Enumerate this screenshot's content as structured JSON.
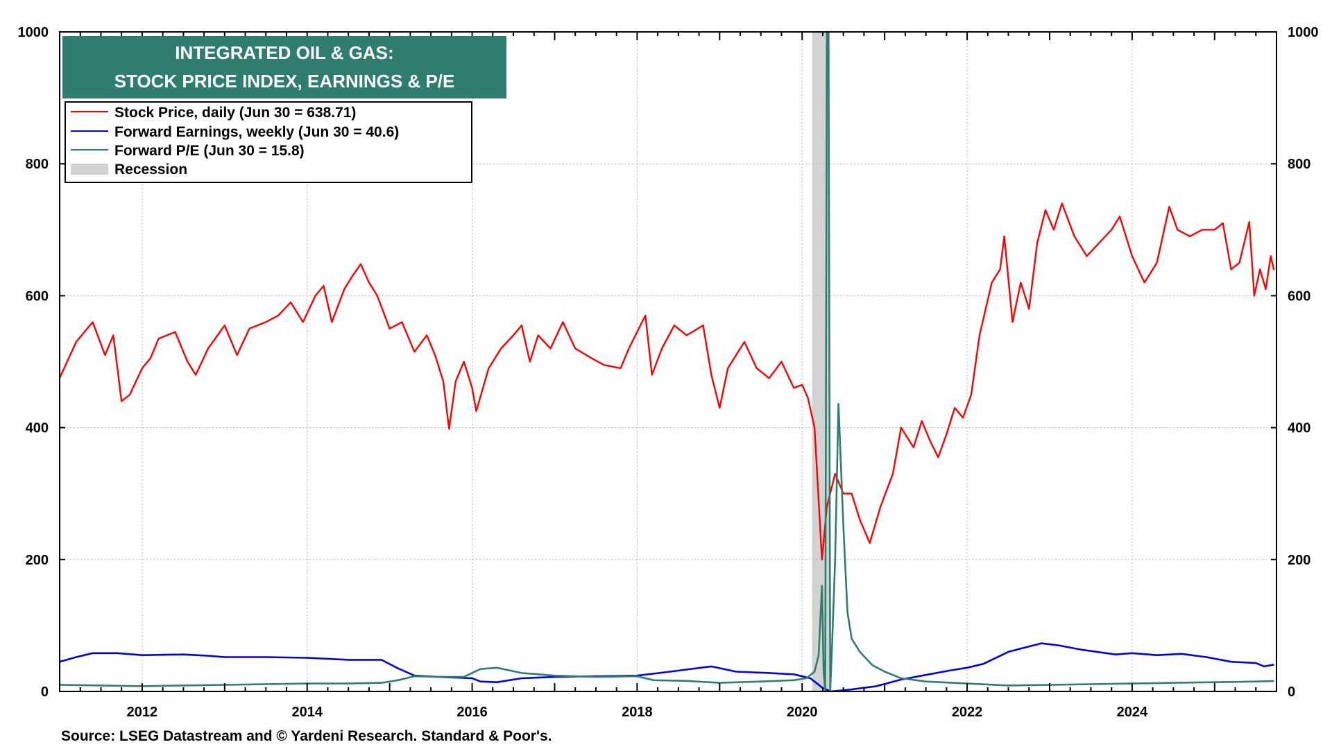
{
  "chart_data": {
    "type": "line",
    "title_lines": [
      "INTEGRATED OIL & GAS:",
      "STOCK PRICE INDEX, EARNINGS & P/E"
    ],
    "source": "Source: LSEG Datastream and © Yardeni Research. Standard & Poor's.",
    "x_range": [
      2011.0,
      2025.75
    ],
    "y_left_range": [
      0,
      1000
    ],
    "y_right_range": [
      0,
      1000
    ],
    "y_ticks": [
      "0",
      "200",
      "400",
      "600",
      "800",
      "1000"
    ],
    "x_ticks": [
      "2012",
      "2014",
      "2016",
      "2018",
      "2020",
      "2022",
      "2024"
    ],
    "grid": true,
    "legend_position": "top-left",
    "colors": {
      "price": "#ff0000",
      "earnings": "#0000ee",
      "pe": "#2e7d6e",
      "recession": "#d3d3d3",
      "title_bg": "#2e7d6e"
    },
    "recession": [
      2020.12,
      2020.33
    ],
    "series": [
      {
        "key": "price",
        "name": "Stock Price, daily (Jun 30 = 638.71)",
        "points": [
          [
            2011.0,
            475
          ],
          [
            2011.2,
            530
          ],
          [
            2011.4,
            560
          ],
          [
            2011.55,
            510
          ],
          [
            2011.65,
            540
          ],
          [
            2011.75,
            440
          ],
          [
            2011.85,
            450
          ],
          [
            2012.0,
            490
          ],
          [
            2012.1,
            505
          ],
          [
            2012.2,
            535
          ],
          [
            2012.4,
            545
          ],
          [
            2012.55,
            500
          ],
          [
            2012.65,
            480
          ],
          [
            2012.8,
            520
          ],
          [
            2013.0,
            555
          ],
          [
            2013.15,
            510
          ],
          [
            2013.3,
            550
          ],
          [
            2013.5,
            560
          ],
          [
            2013.65,
            570
          ],
          [
            2013.8,
            590
          ],
          [
            2013.95,
            560
          ],
          [
            2014.1,
            600
          ],
          [
            2014.2,
            615
          ],
          [
            2014.3,
            560
          ],
          [
            2014.45,
            610
          ],
          [
            2014.55,
            630
          ],
          [
            2014.65,
            648
          ],
          [
            2014.75,
            620
          ],
          [
            2014.85,
            600
          ],
          [
            2015.0,
            550
          ],
          [
            2015.15,
            560
          ],
          [
            2015.3,
            515
          ],
          [
            2015.45,
            540
          ],
          [
            2015.55,
            510
          ],
          [
            2015.65,
            470
          ],
          [
            2015.72,
            398
          ],
          [
            2015.8,
            470
          ],
          [
            2015.9,
            500
          ],
          [
            2016.0,
            460
          ],
          [
            2016.05,
            425
          ],
          [
            2016.2,
            490
          ],
          [
            2016.35,
            520
          ],
          [
            2016.5,
            540
          ],
          [
            2016.6,
            555
          ],
          [
            2016.7,
            500
          ],
          [
            2016.8,
            540
          ],
          [
            2016.95,
            520
          ],
          [
            2017.1,
            560
          ],
          [
            2017.25,
            520
          ],
          [
            2017.45,
            505
          ],
          [
            2017.6,
            495
          ],
          [
            2017.8,
            490
          ],
          [
            2017.9,
            520
          ],
          [
            2018.0,
            545
          ],
          [
            2018.1,
            570
          ],
          [
            2018.18,
            480
          ],
          [
            2018.3,
            520
          ],
          [
            2018.45,
            555
          ],
          [
            2018.6,
            540
          ],
          [
            2018.8,
            555
          ],
          [
            2018.9,
            480
          ],
          [
            2019.0,
            430
          ],
          [
            2019.1,
            490
          ],
          [
            2019.3,
            530
          ],
          [
            2019.45,
            490
          ],
          [
            2019.6,
            475
          ],
          [
            2019.75,
            500
          ],
          [
            2019.9,
            460
          ],
          [
            2020.0,
            465
          ],
          [
            2020.07,
            445
          ],
          [
            2020.15,
            400
          ],
          [
            2020.2,
            290
          ],
          [
            2020.24,
            200
          ],
          [
            2020.3,
            280
          ],
          [
            2020.4,
            330
          ],
          [
            2020.5,
            300
          ],
          [
            2020.6,
            300
          ],
          [
            2020.7,
            260
          ],
          [
            2020.82,
            225
          ],
          [
            2020.95,
            280
          ],
          [
            2021.1,
            330
          ],
          [
            2021.2,
            400
          ],
          [
            2021.35,
            370
          ],
          [
            2021.45,
            410
          ],
          [
            2021.55,
            380
          ],
          [
            2021.65,
            355
          ],
          [
            2021.75,
            390
          ],
          [
            2021.85,
            430
          ],
          [
            2021.95,
            415
          ],
          [
            2022.05,
            450
          ],
          [
            2022.15,
            540
          ],
          [
            2022.3,
            620
          ],
          [
            2022.4,
            640
          ],
          [
            2022.45,
            690
          ],
          [
            2022.55,
            560
          ],
          [
            2022.65,
            620
          ],
          [
            2022.75,
            580
          ],
          [
            2022.85,
            680
          ],
          [
            2022.95,
            730
          ],
          [
            2023.05,
            700
          ],
          [
            2023.15,
            740
          ],
          [
            2023.3,
            690
          ],
          [
            2023.45,
            660
          ],
          [
            2023.6,
            680
          ],
          [
            2023.75,
            700
          ],
          [
            2023.85,
            720
          ],
          [
            2024.0,
            660
          ],
          [
            2024.15,
            620
          ],
          [
            2024.3,
            650
          ],
          [
            2024.45,
            735
          ],
          [
            2024.55,
            700
          ],
          [
            2024.7,
            690
          ],
          [
            2024.85,
            700
          ],
          [
            2025.0,
            700
          ],
          [
            2025.1,
            710
          ],
          [
            2025.2,
            640
          ],
          [
            2025.3,
            650
          ],
          [
            2025.42,
            712
          ],
          [
            2025.48,
            600
          ],
          [
            2025.55,
            640
          ],
          [
            2025.62,
            610
          ],
          [
            2025.68,
            660
          ],
          [
            2025.72,
            639
          ]
        ]
      },
      {
        "key": "earnings",
        "name": "Forward Earnings, weekly (Jun 30 = 40.6)",
        "points": [
          [
            2011.0,
            45
          ],
          [
            2011.2,
            52
          ],
          [
            2011.4,
            58
          ],
          [
            2011.7,
            58
          ],
          [
            2012.0,
            55
          ],
          [
            2012.5,
            56
          ],
          [
            2012.8,
            54
          ],
          [
            2013.0,
            52
          ],
          [
            2013.5,
            52
          ],
          [
            2014.0,
            51
          ],
          [
            2014.5,
            48
          ],
          [
            2014.9,
            48
          ],
          [
            2015.1,
            35
          ],
          [
            2015.3,
            24
          ],
          [
            2015.6,
            22
          ],
          [
            2016.0,
            20
          ],
          [
            2016.1,
            15
          ],
          [
            2016.3,
            14
          ],
          [
            2016.6,
            20
          ],
          [
            2017.0,
            22
          ],
          [
            2017.5,
            23
          ],
          [
            2018.0,
            24
          ],
          [
            2018.4,
            30
          ],
          [
            2018.9,
            38
          ],
          [
            2019.2,
            30
          ],
          [
            2019.6,
            28
          ],
          [
            2019.9,
            26
          ],
          [
            2020.1,
            20
          ],
          [
            2020.25,
            5
          ],
          [
            2020.35,
            0
          ],
          [
            2020.6,
            3
          ],
          [
            2020.9,
            8
          ],
          [
            2021.2,
            18
          ],
          [
            2021.5,
            25
          ],
          [
            2021.8,
            32
          ],
          [
            2022.0,
            36
          ],
          [
            2022.2,
            42
          ],
          [
            2022.5,
            60
          ],
          [
            2022.9,
            73
          ],
          [
            2023.1,
            70
          ],
          [
            2023.4,
            63
          ],
          [
            2023.8,
            56
          ],
          [
            2024.0,
            58
          ],
          [
            2024.3,
            55
          ],
          [
            2024.6,
            57
          ],
          [
            2024.9,
            52
          ],
          [
            2025.2,
            45
          ],
          [
            2025.5,
            43
          ],
          [
            2025.6,
            38
          ],
          [
            2025.72,
            40.6
          ]
        ]
      },
      {
        "key": "pe",
        "name": "Forward P/E (Jun 30 = 15.8)",
        "points": [
          [
            2011.0,
            10
          ],
          [
            2011.5,
            9
          ],
          [
            2012.0,
            8
          ],
          [
            2012.5,
            9
          ],
          [
            2013.0,
            10
          ],
          [
            2013.5,
            11
          ],
          [
            2014.0,
            12
          ],
          [
            2014.5,
            12
          ],
          [
            2014.9,
            13
          ],
          [
            2015.1,
            17
          ],
          [
            2015.3,
            23
          ],
          [
            2015.6,
            22
          ],
          [
            2015.9,
            22
          ],
          [
            2016.1,
            34
          ],
          [
            2016.3,
            36
          ],
          [
            2016.6,
            28
          ],
          [
            2017.0,
            24
          ],
          [
            2017.5,
            22
          ],
          [
            2018.0,
            23
          ],
          [
            2018.2,
            17
          ],
          [
            2018.6,
            16
          ],
          [
            2019.0,
            13
          ],
          [
            2019.5,
            15
          ],
          [
            2019.9,
            17
          ],
          [
            2020.05,
            20
          ],
          [
            2020.15,
            30
          ],
          [
            2020.2,
            55
          ],
          [
            2020.24,
            160
          ],
          [
            2020.26,
            30
          ],
          [
            2020.28,
            0
          ],
          [
            2020.3,
            1000
          ],
          [
            2020.32,
            1000
          ],
          [
            2020.34,
            0
          ],
          [
            2020.36,
            60
          ],
          [
            2020.4,
            200
          ],
          [
            2020.44,
            436
          ],
          [
            2020.5,
            250
          ],
          [
            2020.55,
            120
          ],
          [
            2020.6,
            80
          ],
          [
            2020.7,
            60
          ],
          [
            2020.85,
            40
          ],
          [
            2021.0,
            30
          ],
          [
            2021.2,
            20
          ],
          [
            2021.5,
            15
          ],
          [
            2022.0,
            12
          ],
          [
            2022.5,
            9
          ],
          [
            2023.0,
            10
          ],
          [
            2023.5,
            11
          ],
          [
            2024.0,
            12
          ],
          [
            2024.5,
            13
          ],
          [
            2025.0,
            14
          ],
          [
            2025.5,
            15
          ],
          [
            2025.72,
            15.8
          ]
        ]
      }
    ],
    "legend_recession_label": "Recession"
  }
}
